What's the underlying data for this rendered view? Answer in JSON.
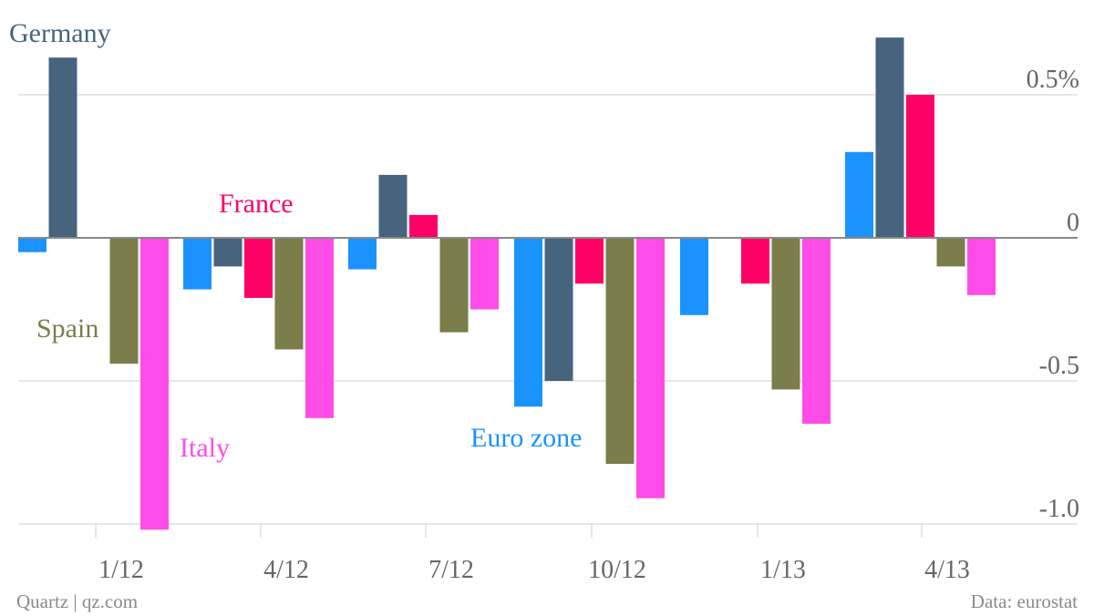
{
  "chart_data": {
    "type": "bar",
    "grid": "horizontal",
    "ylim": [
      -1.1,
      0.75
    ],
    "y_ticks": [
      {
        "value": 0.5,
        "label": "0.5%"
      },
      {
        "value": 0,
        "label": "0"
      },
      {
        "value": -0.5,
        "label": "-0.5"
      },
      {
        "value": -1.0,
        "label": "-1.0"
      }
    ],
    "x_tick_labels": [
      "1/12",
      "4/12",
      "7/12",
      "10/12",
      "1/13",
      "4/13"
    ],
    "series_order": [
      "Euro zone",
      "Germany",
      "France",
      "Spain",
      "Italy"
    ],
    "series": [
      {
        "name": "Germany",
        "color": "#46647e"
      },
      {
        "name": "France",
        "color": "#ff0066"
      },
      {
        "name": "Spain",
        "color": "#7b7d4a"
      },
      {
        "name": "Italy",
        "color": "#ff4ce8"
      },
      {
        "name": "Euro zone",
        "color": "#1a93ff"
      }
    ],
    "quarters": [
      {
        "values": {
          "Euro zone": -0.05,
          "Germany": 0.63,
          "France": null,
          "Spain": -0.44,
          "Italy": -1.02
        }
      },
      {
        "values": {
          "Euro zone": -0.18,
          "Germany": -0.1,
          "France": -0.21,
          "Spain": -0.39,
          "Italy": -0.63
        }
      },
      {
        "values": {
          "Euro zone": -0.11,
          "Germany": 0.22,
          "France": 0.08,
          "Spain": -0.33,
          "Italy": -0.25
        }
      },
      {
        "values": {
          "Euro zone": -0.59,
          "Germany": -0.5,
          "France": -0.16,
          "Spain": -0.79,
          "Italy": -0.91
        }
      },
      {
        "values": {
          "Euro zone": -0.27,
          "Germany": null,
          "France": -0.16,
          "Spain": -0.53,
          "Italy": -0.65
        }
      },
      {
        "values": {
          "Euro zone": 0.3,
          "Germany": 0.7,
          "France": 0.5,
          "Spain": -0.1,
          "Italy": -0.2
        }
      }
    ],
    "series_labels": [
      {
        "text": "Germany",
        "series": "Germany"
      },
      {
        "text": "France",
        "series": "France"
      },
      {
        "text": "Spain",
        "series": "Spain"
      },
      {
        "text": "Italy",
        "series": "Italy"
      },
      {
        "text": "Euro zone",
        "series": "Euro zone"
      }
    ]
  },
  "footer": {
    "left": "Quartz | qz.com",
    "right": "Data: eurostat"
  }
}
